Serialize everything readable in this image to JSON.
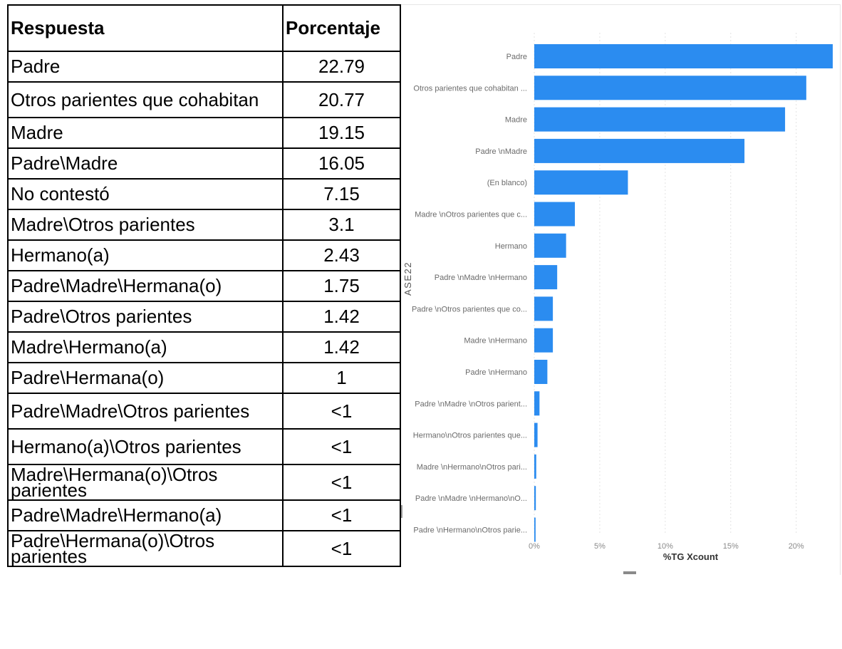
{
  "table": {
    "headers": [
      "Respuesta",
      "Porcentaje"
    ],
    "rows": [
      {
        "respuesta": "Padre",
        "porcentaje": "22.79"
      },
      {
        "respuesta": "Otros parientes que cohabitan",
        "porcentaje": "20.77"
      },
      {
        "respuesta": "Madre",
        "porcentaje": "19.15"
      },
      {
        "respuesta": "Padre\\Madre",
        "porcentaje": "16.05"
      },
      {
        "respuesta": "No contestó",
        "porcentaje": "7.15"
      },
      {
        "respuesta": "Madre\\Otros parientes",
        "porcentaje": "3.1"
      },
      {
        "respuesta": "Hermano(a)",
        "porcentaje": "2.43"
      },
      {
        "respuesta": "Padre\\Madre\\Hermana(o)",
        "porcentaje": "1.75"
      },
      {
        "respuesta": "Padre\\Otros parientes",
        "porcentaje": "1.42"
      },
      {
        "respuesta": "Madre\\Hermano(a)",
        "porcentaje": "1.42"
      },
      {
        "respuesta": "Padre\\Hermana(o)",
        "porcentaje": "1"
      },
      {
        "respuesta": "Padre\\Madre\\Otros parientes",
        "porcentaje": "<1"
      },
      {
        "respuesta": "Hermano(a)\\Otros parientes",
        "porcentaje": "<1"
      },
      {
        "respuesta": "Madre\\Hermana(o)\\Otros parientes",
        "porcentaje": "<1"
      },
      {
        "respuesta": "Padre\\Madre\\Hermano(a)",
        "porcentaje": "<1"
      },
      {
        "respuesta": "Padre\\Hermana(o)\\Otros parientes",
        "porcentaje": "<1"
      }
    ]
  },
  "chart_data": {
    "type": "bar",
    "orientation": "horizontal",
    "categories": [
      "Padre",
      "Otros parientes que cohabitan ...",
      "Madre",
      "Padre \\nMadre",
      "(En blanco)",
      "Madre \\nOtros parientes que c...",
      "Hermano",
      "Padre \\nMadre \\nHermano",
      "Padre \\nOtros parientes que co...",
      "Madre \\nHermano",
      "Padre \\nHermano",
      "Padre \\nMadre \\nOtros parient...",
      "Hermano\\nOtros parientes que...",
      "Madre \\nHermano\\nOtros pari...",
      "Padre \\nMadre \\nHermano\\nO...",
      "Padre \\nHermano\\nOtros parie..."
    ],
    "values": [
      22.79,
      20.77,
      19.15,
      16.05,
      7.15,
      3.1,
      2.43,
      1.75,
      1.42,
      1.42,
      1.0,
      0.4,
      0.25,
      0.15,
      0.12,
      0.1
    ],
    "xlabel": "%TG Xcount",
    "ylabel": "ASE22",
    "xticks": [
      "0%",
      "5%",
      "10%",
      "15%",
      "20%"
    ],
    "xlim": [
      0,
      22.79
    ],
    "bar_color": "#2b8cf0",
    "grid": true
  }
}
